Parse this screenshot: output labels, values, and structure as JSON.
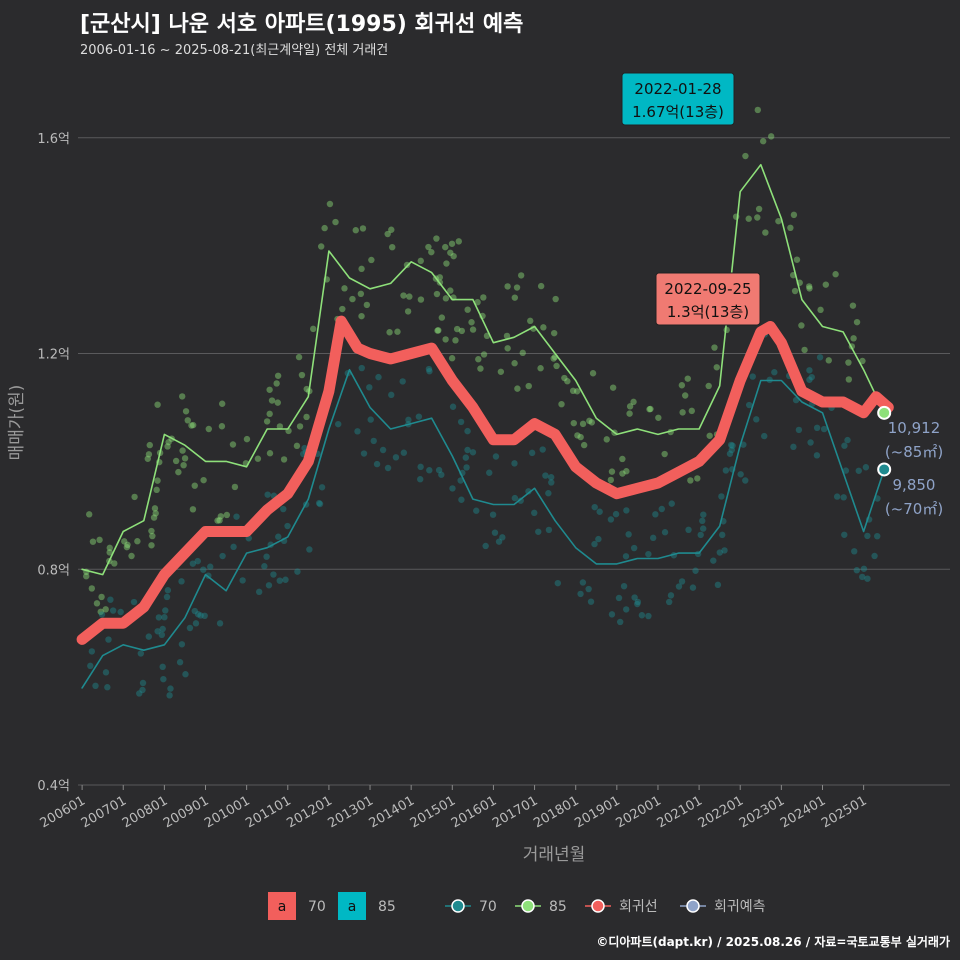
{
  "title": "[군산시] 나운 서호 아파트(1995) 회귀선 예측",
  "subtitle": "2006-01-16 ~ 2025-08-21(최근계약일) 전체 거래건",
  "footer": "©디아파트(dapt.kr) / 2025.08.26 / 자료=국토교통부 실거래가",
  "colors": {
    "background": "#2b2b2d",
    "grid": "#5a5a5c",
    "s70": "#1f8a8f",
    "s85": "#8ee07a",
    "regression": "#f25f5c",
    "forecast": "#8fa3c8",
    "callout_85": "#00b8c4",
    "callout_70": "#f07a72"
  },
  "chart_data": {
    "type": "line",
    "xlabel": "거래년월",
    "ylabel": "매매가(원)",
    "x_ticks": [
      "200601",
      "200701",
      "200801",
      "200901",
      "201001",
      "201101",
      "201201",
      "201301",
      "201401",
      "201501",
      "201601",
      "201701",
      "201801",
      "201901",
      "202001",
      "202101",
      "202201",
      "202301",
      "202401",
      "202501"
    ],
    "y_ticks": [
      {
        "value": 0.4,
        "label": "0.4억"
      },
      {
        "value": 0.8,
        "label": "0.8억"
      },
      {
        "value": 1.2,
        "label": "1.2억"
      },
      {
        "value": 1.6,
        "label": "1.6억"
      }
    ],
    "ylim": [
      0.4,
      1.65
    ],
    "grid": true,
    "series": [
      {
        "name": "70",
        "kind": "moving_avg",
        "x": [
          2006.0,
          2006.5,
          2007.0,
          2007.5,
          2008.0,
          2008.5,
          2009.0,
          2009.5,
          2010.0,
          2010.5,
          2011.0,
          2011.5,
          2012.0,
          2012.5,
          2013.0,
          2013.5,
          2014.0,
          2014.5,
          2015.0,
          2015.5,
          2016.0,
          2016.5,
          2017.0,
          2017.5,
          2018.0,
          2018.5,
          2019.0,
          2019.5,
          2020.0,
          2020.5,
          2021.0,
          2021.5,
          2022.0,
          2022.5,
          2023.0,
          2023.5,
          2024.0,
          2024.5,
          2025.0,
          2025.5
        ],
        "y": [
          0.58,
          0.64,
          0.66,
          0.65,
          0.66,
          0.71,
          0.79,
          0.76,
          0.83,
          0.84,
          0.86,
          0.93,
          1.06,
          1.17,
          1.1,
          1.06,
          1.07,
          1.08,
          1.01,
          0.93,
          0.92,
          0.92,
          0.95,
          0.89,
          0.84,
          0.81,
          0.81,
          0.82,
          0.82,
          0.83,
          0.83,
          0.88,
          1.03,
          1.15,
          1.15,
          1.11,
          1.09,
          0.98,
          0.87,
          0.985
        ]
      },
      {
        "name": "85",
        "kind": "moving_avg",
        "x": [
          2006.0,
          2006.5,
          2007.0,
          2007.5,
          2008.0,
          2008.5,
          2009.0,
          2009.5,
          2010.0,
          2010.5,
          2011.0,
          2011.5,
          2012.0,
          2012.5,
          2013.0,
          2013.5,
          2014.0,
          2014.5,
          2015.0,
          2015.5,
          2016.0,
          2016.5,
          2017.0,
          2017.5,
          2018.0,
          2018.5,
          2019.0,
          2019.5,
          2020.0,
          2020.5,
          2021.0,
          2021.5,
          2022.0,
          2022.5,
          2023.0,
          2023.5,
          2024.0,
          2024.5,
          2025.0,
          2025.5
        ],
        "y": [
          0.8,
          0.79,
          0.87,
          0.89,
          1.05,
          1.03,
          1.0,
          1.0,
          0.99,
          1.06,
          1.06,
          1.12,
          1.39,
          1.34,
          1.32,
          1.33,
          1.37,
          1.35,
          1.3,
          1.3,
          1.22,
          1.23,
          1.25,
          1.2,
          1.15,
          1.08,
          1.05,
          1.06,
          1.05,
          1.06,
          1.06,
          1.14,
          1.5,
          1.55,
          1.45,
          1.3,
          1.25,
          1.24,
          1.17,
          1.09
        ]
      },
      {
        "name": "회귀선",
        "kind": "regression",
        "x": [
          2006.0,
          2006.5,
          2007.0,
          2007.5,
          2008.0,
          2008.5,
          2009.0,
          2009.5,
          2010.0,
          2010.5,
          2011.0,
          2011.5,
          2012.0,
          2012.3,
          2012.7,
          2013.0,
          2013.5,
          2014.0,
          2014.5,
          2015.0,
          2015.5,
          2016.0,
          2016.5,
          2017.0,
          2017.5,
          2018.0,
          2018.5,
          2019.0,
          2019.5,
          2020.0,
          2020.5,
          2021.0,
          2021.5,
          2022.0,
          2022.5,
          2022.73,
          2023.0,
          2023.5,
          2024.0,
          2024.5,
          2025.0,
          2025.3,
          2025.6
        ],
        "y": [
          0.67,
          0.7,
          0.7,
          0.73,
          0.79,
          0.83,
          0.87,
          0.87,
          0.87,
          0.91,
          0.94,
          1.0,
          1.13,
          1.26,
          1.21,
          1.2,
          1.19,
          1.2,
          1.21,
          1.15,
          1.1,
          1.04,
          1.04,
          1.07,
          1.05,
          0.99,
          0.96,
          0.94,
          0.95,
          0.96,
          0.98,
          1.0,
          1.04,
          1.15,
          1.24,
          1.25,
          1.22,
          1.13,
          1.11,
          1.11,
          1.09,
          1.12,
          1.1
        ]
      },
      {
        "name": "회귀예측",
        "kind": "forecast",
        "x": [],
        "y": []
      }
    ],
    "annotations": [
      {
        "date": "2022-01-28",
        "value": "1.67억(13층)"
      },
      {
        "date": "2022-09-25",
        "value": "1.3억(13층)"
      }
    ],
    "end_labels": [
      {
        "series": "85",
        "value": "10,912",
        "note": "(~85㎡)"
      },
      {
        "series": "70",
        "value": "9,850",
        "note": "(~70㎡)"
      }
    ],
    "legend": {
      "position": "bottom",
      "fill_keys": [
        {
          "label": "70",
          "key": "a"
        },
        {
          "label": "85",
          "key": "a"
        }
      ],
      "line_keys": [
        {
          "label": "70"
        },
        {
          "label": "85"
        },
        {
          "label": "회귀선"
        },
        {
          "label": "회귀예측"
        }
      ]
    }
  }
}
